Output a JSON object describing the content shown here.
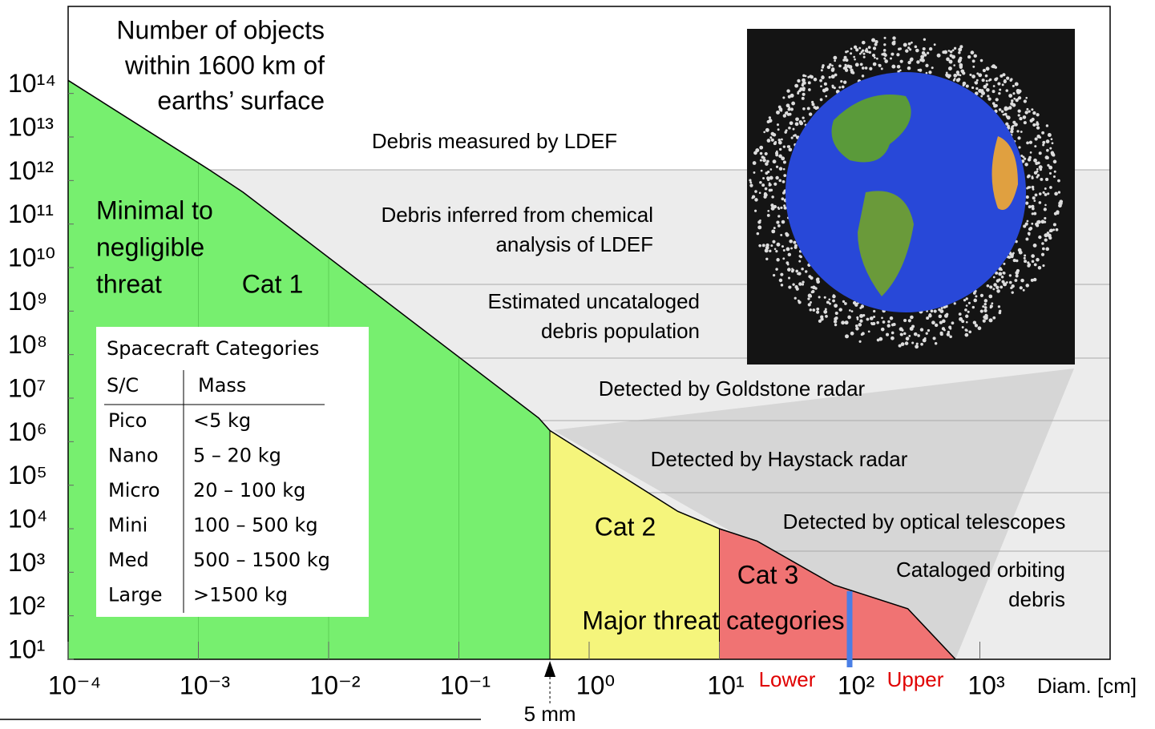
{
  "chart_data": {
    "type": "line",
    "title_lines": [
      "Number of objects",
      "within 1600 km of",
      "earths’ surface"
    ],
    "x_label": "Diam. [cm]",
    "log_x": true,
    "log_y": true,
    "xlim": [
      0.0001,
      10000
    ],
    "ylim": [
      10,
      1e+16
    ],
    "xticks": [
      {
        "value": 0.0001,
        "label": "10⁻⁴"
      },
      {
        "value": 0.001,
        "label": "10⁻³"
      },
      {
        "value": 0.01,
        "label": "10⁻²"
      },
      {
        "value": 0.1,
        "label": "10⁻¹"
      },
      {
        "value": 1,
        "label": "10⁰"
      },
      {
        "value": 10,
        "label": "10¹"
      },
      {
        "value": 100,
        "label": "10²"
      },
      {
        "value": 1000,
        "label": "10³"
      }
    ],
    "yticks": [
      {
        "value": 10,
        "label": "10¹"
      },
      {
        "value": 100,
        "label": "10²"
      },
      {
        "value": 1000,
        "label": "10³"
      },
      {
        "value": 10000,
        "label": "10⁴"
      },
      {
        "value": 100000,
        "label": "10⁵"
      },
      {
        "value": 1000000,
        "label": "10⁶"
      },
      {
        "value": 10000000,
        "label": "10⁷"
      },
      {
        "value": 100000000,
        "label": "10⁸"
      },
      {
        "value": 1000000000,
        "label": "10⁹"
      },
      {
        "value": 10000000000,
        "label": "10¹⁰"
      },
      {
        "value": 100000000000,
        "label": "10¹¹"
      },
      {
        "value": 1000000000000,
        "label": "10¹²"
      },
      {
        "value": 10000000000000,
        "label": "10¹³"
      },
      {
        "value": 100000000000000,
        "label": "10¹⁴"
      }
    ],
    "x": [
      0.0001,
      0.0012,
      0.0022,
      0.41,
      0.5,
      4.8,
      10,
      19.5,
      76,
      280,
      650
    ],
    "series": [
      {
        "name": "Number of objects",
        "color": "#000000",
        "values": [
          200000000000000,
          1800000000000,
          540000000000,
          3500000,
          1800000,
          25000,
          10000,
          5200,
          510,
          145,
          10
        ]
      }
    ],
    "regions": [
      {
        "name": "Cat 1",
        "color": "#77ef6f",
        "xmin": 0.0001,
        "xmax": 0.5
      },
      {
        "name": "Cat 2",
        "color": "#f5f57c",
        "xmin": 0.5,
        "xmax": 10
      },
      {
        "name": "Cat 3",
        "color": "#f07373",
        "xmin": 10,
        "xmax": 650
      }
    ],
    "region_note": [
      "Minimal to",
      "negligible",
      "threat"
    ],
    "major_label": "Major threat categories",
    "bands": [
      [
        "Debris measured by LDEF"
      ],
      [
        "Debris inferred from chemical",
        "analysis of LDEF"
      ],
      [
        "Estimated uncataloged",
        "debris population"
      ],
      [
        "Detected by Goldstone radar"
      ],
      [
        "Detected by Haystack radar"
      ],
      [
        "Detected by optical telescopes"
      ],
      [
        "Cataloged orbiting",
        "debris"
      ]
    ],
    "marker": {
      "x": 100,
      "color": "#4a7fe6",
      "left_label": "Lower",
      "right_label": "Upper",
      "label_color": "#e00000"
    },
    "arrow": {
      "x": 0.5,
      "label": "5 mm"
    },
    "table": {
      "title": "Spacecraft Categories",
      "header": [
        "S/C",
        "Mass"
      ],
      "rows": [
        [
          "Pico",
          "<5 kg"
        ],
        [
          "Nano",
          "5 – 20 kg"
        ],
        [
          "Micro",
          "20 – 100 kg"
        ],
        [
          "Mini",
          "100 – 500 kg"
        ],
        [
          "Med",
          "500 – 1500 kg"
        ],
        [
          "Large",
          ">1500 kg"
        ]
      ]
    }
  }
}
